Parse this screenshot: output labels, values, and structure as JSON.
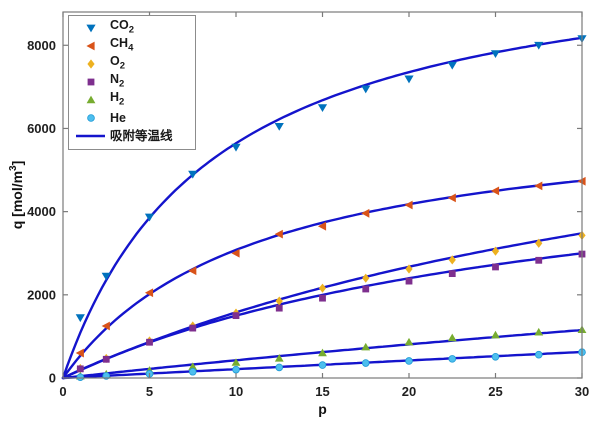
{
  "figure": {
    "background": "#ffffff",
    "frame_color": "#7a7a7a",
    "tick_color": "#7a7a7a",
    "text_color": "#1f1f1f"
  },
  "chart_data": {
    "type": "line",
    "title": "",
    "xlabel": "p",
    "ylabel_parts": {
      "prefix": "q [mol/m",
      "sup": "3",
      "suffix": "]"
    },
    "xlim": [
      0,
      30
    ],
    "ylim": [
      0,
      8800
    ],
    "xticks": [
      0,
      5,
      10,
      15,
      20,
      25,
      30
    ],
    "yticks": [
      0,
      2000,
      4000,
      6000,
      8000
    ],
    "grid": false,
    "legend_position": "top-left",
    "fit_line": {
      "label": "吸附等温线",
      "color": "#1414cc",
      "width": 2.4
    },
    "p_points": [
      1,
      2.5,
      5,
      7.5,
      10,
      12.5,
      15,
      17.5,
      20,
      22.5,
      25,
      27.5,
      30
    ],
    "series": [
      {
        "slug": "co2",
        "formula": "CO",
        "sub": "2",
        "marker": "triangle-down",
        "color": "#0072BD",
        "langmuir": {
          "qmax": 10550,
          "b": 0.115
        },
        "q_values": [
          1450,
          2450,
          3870,
          4900,
          5550,
          6050,
          6500,
          6950,
          7190,
          7520,
          7800,
          8000,
          8160
        ]
      },
      {
        "slug": "ch4",
        "formula": "CH",
        "sub": "4",
        "marker": "triangle-left",
        "color": "#D95319",
        "langmuir": {
          "qmax": 6500,
          "b": 0.09
        },
        "q_values": [
          600,
          1250,
          2050,
          2580,
          3000,
          3460,
          3650,
          3960,
          4160,
          4330,
          4500,
          4620,
          4730
        ]
      },
      {
        "slug": "o2",
        "formula": "O",
        "sub": "2",
        "marker": "diamond",
        "color": "#EDB120",
        "langmuir": {
          "qmax": 8750,
          "b": 0.022
        },
        "q_values": [
          230,
          470,
          890,
          1250,
          1560,
          1850,
          2160,
          2400,
          2620,
          2840,
          3050,
          3240,
          3430
        ]
      },
      {
        "slug": "n2",
        "formula": "N",
        "sub": "2",
        "marker": "square",
        "color": "#7E2F8E",
        "langmuir": {
          "qmax": 6000,
          "b": 0.0333
        },
        "q_values": [
          220,
          450,
          860,
          1200,
          1500,
          1680,
          1920,
          2140,
          2330,
          2510,
          2670,
          2830,
          2980
        ]
      },
      {
        "slug": "h2",
        "formula": "H",
        "sub": "2",
        "marker": "triangle-up",
        "color": "#77AC30",
        "langmuir": {
          "qmax": 7900,
          "b": 0.0057
        },
        "q_values": [
          40,
          90,
          180,
          270,
          370,
          470,
          600,
          740,
          860,
          960,
          1030,
          1100,
          1160
        ]
      },
      {
        "slug": "he",
        "formula": "He",
        "sub": "",
        "marker": "circle",
        "color": "#4DBEEE",
        "langmuir": {
          "qmax": 21500,
          "b": 0.001
        },
        "q_values": [
          20,
          50,
          100,
          150,
          200,
          255,
          310,
          360,
          410,
          460,
          510,
          560,
          620
        ]
      }
    ]
  }
}
